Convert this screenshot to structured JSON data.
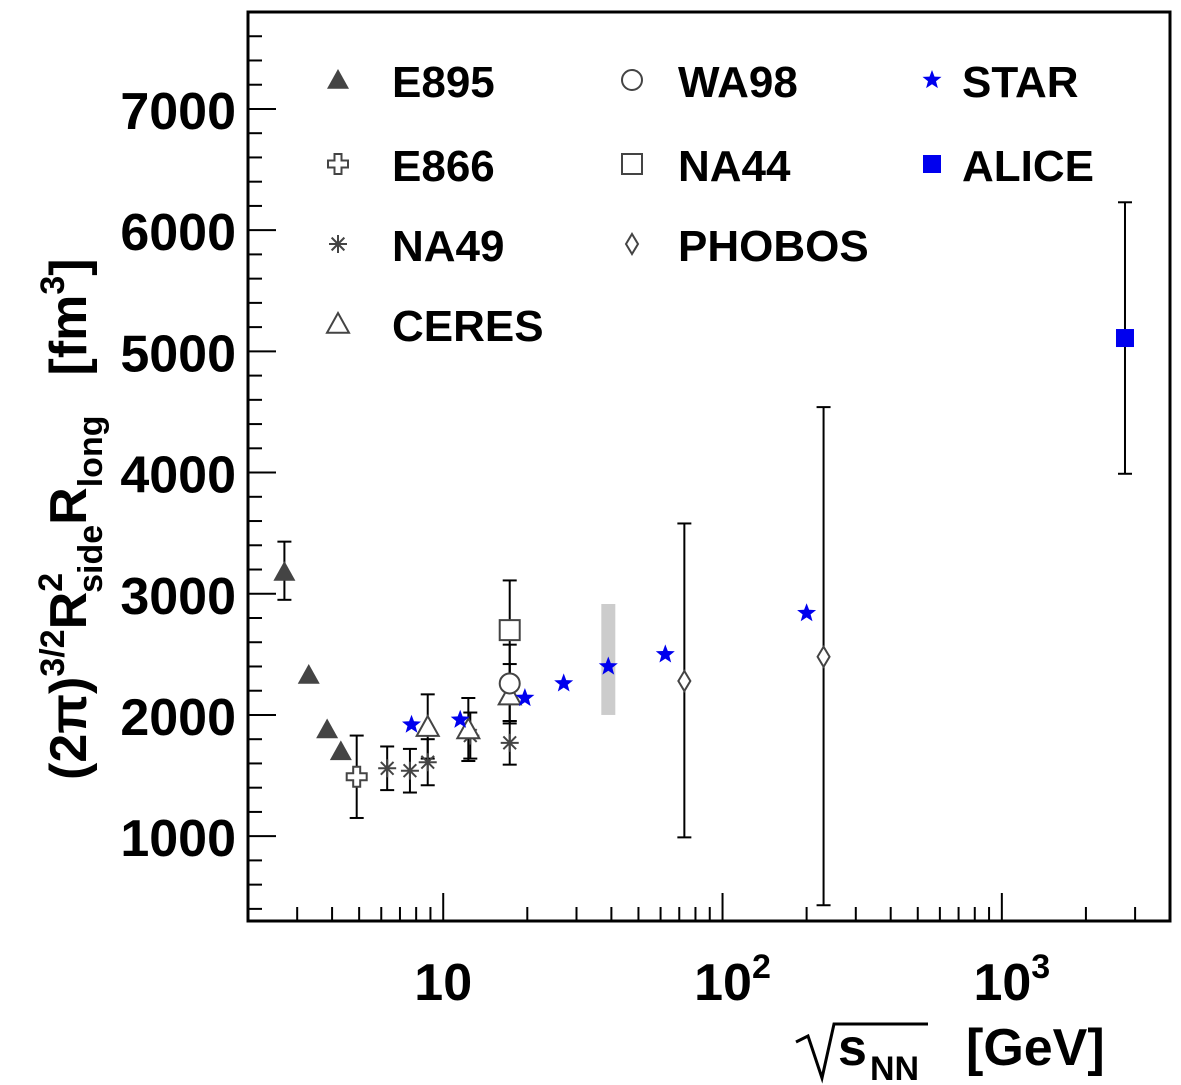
{
  "chart_data": {
    "type": "scatter",
    "xscale": "log",
    "xlim": [
      2,
      4000
    ],
    "ylim": [
      300,
      7800
    ],
    "xlabel": {
      "root": "s",
      "sub": "NN",
      "unit": "[GeV]"
    },
    "ylabel": {
      "prefix": "(2π)",
      "exp": "3/2",
      "r1": "R",
      "r1_sup": "2",
      "r1_sub": "side",
      "r2": "R",
      "r2_sub": "long",
      "unit": "[fm",
      "unit_sup": "3",
      "unit_close": "]"
    },
    "yticks": [
      {
        "value": 1000,
        "label": "1000"
      },
      {
        "value": 2000,
        "label": "2000"
      },
      {
        "value": 3000,
        "label": "3000"
      },
      {
        "value": 4000,
        "label": "4000"
      },
      {
        "value": 5000,
        "label": "5000"
      },
      {
        "value": 6000,
        "label": "6000"
      },
      {
        "value": 7000,
        "label": "7000"
      }
    ],
    "xticks": [
      {
        "value": 10,
        "base": "10",
        "exp": ""
      },
      {
        "value": 100,
        "base": "10",
        "exp": "2"
      },
      {
        "value": 1000,
        "base": "10",
        "exp": "3"
      }
    ],
    "series": [
      {
        "name": "E895",
        "marker": "triangle-filled",
        "color": "#444444",
        "points": [
          {
            "x": 2.7,
            "y": 3180,
            "lo": 2950,
            "hi": 3430
          },
          {
            "x": 3.3,
            "y": 2330
          },
          {
            "x": 3.84,
            "y": 1880
          },
          {
            "x": 4.3,
            "y": 1700
          }
        ]
      },
      {
        "name": "E866",
        "marker": "cross-open",
        "color": "#444444",
        "points": [
          {
            "x": 4.9,
            "y": 1490,
            "lo": 1150,
            "hi": 1830
          }
        ]
      },
      {
        "name": "NA49",
        "marker": "asterisk",
        "color": "#444444",
        "points": [
          {
            "x": 6.3,
            "y": 1560,
            "lo": 1380,
            "hi": 1740
          },
          {
            "x": 7.6,
            "y": 1540,
            "lo": 1360,
            "hi": 1720
          },
          {
            "x": 8.8,
            "y": 1610,
            "lo": 1420,
            "hi": 1800
          },
          {
            "x": 12.5,
            "y": 1830,
            "lo": 1640,
            "hi": 2020
          },
          {
            "x": 17.3,
            "y": 1770,
            "lo": 1590,
            "hi": 1950
          }
        ]
      },
      {
        "name": "CERES",
        "marker": "triangle-open",
        "color": "#444444",
        "points": [
          {
            "x": 8.8,
            "y": 1900,
            "lo": 1640,
            "hi": 2170
          },
          {
            "x": 12.3,
            "y": 1880,
            "lo": 1620,
            "hi": 2140
          },
          {
            "x": 17.3,
            "y": 2160,
            "lo": 1930,
            "hi": 2420
          }
        ]
      },
      {
        "name": "WA98",
        "marker": "circle-open",
        "color": "#444444",
        "points": [
          {
            "x": 17.3,
            "y": 2260,
            "lo": 1950,
            "hi": 2580
          }
        ]
      },
      {
        "name": "NA44",
        "marker": "square-open",
        "color": "#444444",
        "points": [
          {
            "x": 17.3,
            "y": 2700,
            "lo": 2300,
            "hi": 3110
          }
        ]
      },
      {
        "name": "PHOBOS",
        "marker": "diamond-open",
        "color": "#444444",
        "points": [
          {
            "x": 73,
            "y": 2280,
            "lo": 990,
            "hi": 3580
          },
          {
            "x": 230,
            "y": 2480,
            "lo": 430,
            "hi": 4540
          }
        ]
      },
      {
        "name": "STAR",
        "marker": "star",
        "color": "#0000ee",
        "points": [
          {
            "x": 7.7,
            "y": 1920
          },
          {
            "x": 11.5,
            "y": 1960
          },
          {
            "x": 19.6,
            "y": 2140
          },
          {
            "x": 27,
            "y": 2260
          },
          {
            "x": 39,
            "y": 2400
          },
          {
            "x": 62.4,
            "y": 2500
          },
          {
            "x": 200,
            "y": 2840
          }
        ]
      },
      {
        "name": "ALICE",
        "marker": "square-filled",
        "color": "#0000ee",
        "points": [
          {
            "x": 2760,
            "y": 5110,
            "lo": 3990,
            "hi": 6230
          }
        ]
      }
    ],
    "bands": [
      {
        "x": 39,
        "lo": 2000,
        "hi": 2800,
        "color": "#cccccc"
      }
    ],
    "legend": {
      "placement": "top",
      "columns": [
        [
          "E895",
          "E866",
          "NA49",
          "CERES"
        ],
        [
          "WA98",
          "NA44",
          "PHOBOS"
        ],
        [
          "STAR",
          "ALICE"
        ]
      ]
    }
  }
}
